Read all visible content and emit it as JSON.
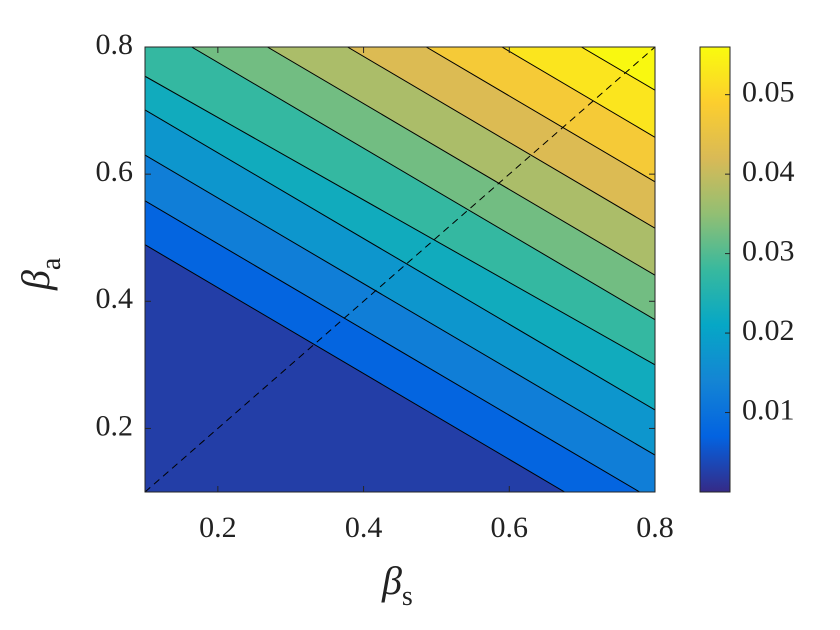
{
  "chart_data": {
    "type": "contour",
    "xlabel": "β",
    "xlabel_subscript": "s",
    "ylabel": "β",
    "ylabel_subscript": "a",
    "xlim": [
      0.1,
      0.8
    ],
    "ylim": [
      0.1,
      0.8
    ],
    "xticks": [
      0.2,
      0.4,
      0.6,
      0.8
    ],
    "yticks": [
      0.2,
      0.4,
      0.6,
      0.8
    ],
    "zlim": [
      0,
      0.056
    ],
    "colorbar_ticks": [
      0.01,
      0.02,
      0.03,
      0.04,
      0.05
    ],
    "colormap": [
      "#352a87",
      "#0363e1",
      "#1485d4",
      "#06a7c6",
      "#38b99e",
      "#92bf73",
      "#d9ba56",
      "#fcce2e",
      "#f9fb0e"
    ],
    "contours": [
      {
        "level": 0.005,
        "points": [
          [
            0.1,
            0.489
          ],
          [
            0.676,
            0.1
          ]
        ]
      },
      {
        "level": 0.01,
        "points": [
          [
            0.1,
            0.558
          ],
          [
            0.779,
            0.1
          ]
        ]
      },
      {
        "level": 0.015,
        "points": [
          [
            0.1,
            0.63
          ],
          [
            0.8,
            0.158
          ]
        ]
      },
      {
        "level": 0.02,
        "points": [
          [
            0.1,
            0.701
          ],
          [
            0.8,
            0.229
          ]
        ]
      },
      {
        "level": 0.025,
        "points": [
          [
            0.1,
            0.754
          ],
          [
            0.8,
            0.3
          ]
        ]
      },
      {
        "level": 0.03,
        "points": [
          [
            0.164,
            0.8
          ],
          [
            0.8,
            0.371
          ]
        ]
      },
      {
        "level": 0.035,
        "points": [
          [
            0.268,
            0.8
          ],
          [
            0.8,
            0.441
          ]
        ]
      },
      {
        "level": 0.04,
        "points": [
          [
            0.378,
            0.8
          ],
          [
            0.8,
            0.515
          ]
        ]
      },
      {
        "level": 0.045,
        "points": [
          [
            0.486,
            0.8
          ],
          [
            0.8,
            0.588
          ]
        ]
      },
      {
        "level": 0.05,
        "points": [
          [
            0.59,
            0.8
          ],
          [
            0.8,
            0.658
          ]
        ]
      },
      {
        "level": 0.055,
        "points": [
          [
            0.699,
            0.8
          ],
          [
            0.8,
            0.732
          ]
        ]
      }
    ],
    "reference_line": {
      "x": [
        0.1,
        0.8
      ],
      "y": [
        0.1,
        0.8
      ]
    }
  }
}
